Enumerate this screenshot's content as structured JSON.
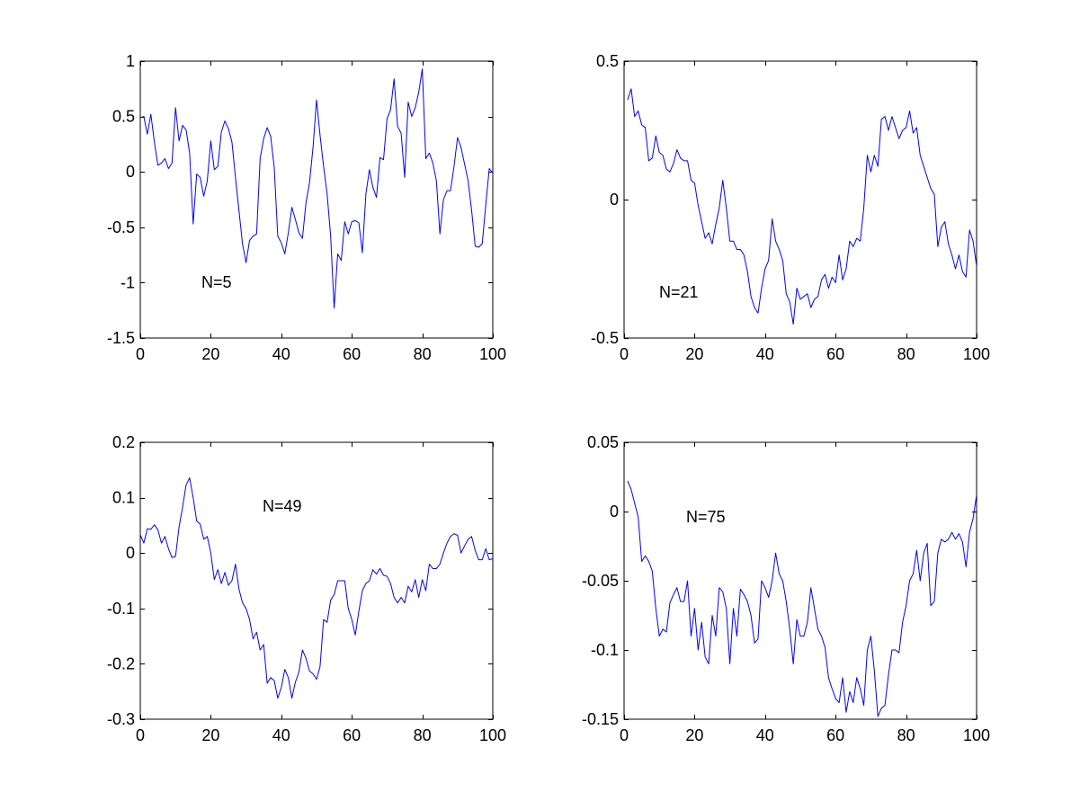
{
  "figure": {
    "background": "#ffffff",
    "line_color": "#0000ff"
  },
  "chart_data": [
    {
      "type": "line",
      "title": "",
      "xlabel": "",
      "ylabel": "",
      "annotation": "N=5",
      "xlim": [
        0,
        100
      ],
      "ylim": [
        -1.5,
        1
      ],
      "xticks": [
        0,
        20,
        40,
        60,
        80,
        100
      ],
      "xtick_labels": [
        "0",
        "20",
        "40",
        "60",
        "80",
        "100"
      ],
      "yticks": [
        -1.5,
        -1,
        -0.5,
        0,
        0.5,
        1
      ],
      "ytick_labels": [
        "-1.5",
        "-1",
        "-0.5",
        "0",
        "0.5",
        "1"
      ],
      "grid": false,
      "series": [
        {
          "color": "#0000ff",
          "x": [
            0,
            1,
            2,
            3,
            4,
            5,
            6,
            7,
            8,
            9,
            10,
            11,
            12,
            13,
            14,
            15,
            16,
            17,
            18,
            19,
            20,
            21,
            22,
            23,
            24,
            25,
            26,
            27,
            28,
            29,
            30,
            31,
            32,
            33,
            34,
            35,
            36,
            37,
            38,
            39,
            40,
            41,
            42,
            43,
            44,
            45,
            46,
            47,
            48,
            49,
            50,
            51,
            52,
            53,
            54,
            55,
            56,
            57,
            58,
            59,
            60,
            61,
            62,
            63,
            64,
            65,
            66,
            67,
            68,
            69,
            70,
            71,
            72,
            73,
            74,
            75,
            76,
            77,
            78,
            79,
            80,
            81,
            82,
            83,
            84,
            85,
            86,
            87,
            88,
            89,
            90,
            91,
            92,
            93,
            94,
            95,
            96,
            97,
            98,
            99,
            100
          ],
          "y": [
            0.49,
            0.5,
            0.34,
            0.52,
            0.27,
            0.06,
            0.08,
            0.12,
            0.03,
            0.08,
            0.58,
            0.28,
            0.42,
            0.38,
            0.17,
            -0.47,
            -0.02,
            -0.05,
            -0.22,
            -0.08,
            0.28,
            0.02,
            0.05,
            0.36,
            0.46,
            0.39,
            0.27,
            -0.05,
            -0.35,
            -0.65,
            -0.82,
            -0.62,
            -0.58,
            -0.56,
            0.12,
            0.3,
            0.4,
            0.32,
            0.04,
            -0.58,
            -0.64,
            -0.74,
            -0.55,
            -0.32,
            -0.43,
            -0.55,
            -0.6,
            -0.28,
            -0.1,
            0.22,
            0.65,
            0.33,
            0.05,
            -0.2,
            -0.58,
            -1.23,
            -0.74,
            -0.8,
            -0.45,
            -0.56,
            -0.45,
            -0.44,
            -0.46,
            -0.73,
            -0.2,
            0.02,
            -0.14,
            -0.23,
            0.13,
            0.11,
            0.48,
            0.56,
            0.84,
            0.41,
            0.35,
            -0.05,
            0.63,
            0.5,
            0.58,
            0.72,
            0.93,
            0.12,
            0.17,
            0.08,
            -0.08,
            -0.56,
            -0.25,
            -0.17,
            -0.17,
            0.05,
            0.31,
            0.22,
            0.07,
            -0.08,
            -0.35,
            -0.67,
            -0.68,
            -0.65,
            -0.3,
            0.03,
            -0.01
          ]
        }
      ]
    },
    {
      "type": "line",
      "title": "",
      "xlabel": "",
      "ylabel": "",
      "annotation": "N=21",
      "xlim": [
        0,
        100
      ],
      "ylim": [
        -0.5,
        0.5
      ],
      "xticks": [
        0,
        20,
        40,
        60,
        80,
        100
      ],
      "xtick_labels": [
        "0",
        "20",
        "40",
        "60",
        "80",
        "100"
      ],
      "yticks": [
        -0.5,
        0,
        0.5
      ],
      "ytick_labels": [
        "-0.5",
        "0",
        "0.5"
      ],
      "grid": false,
      "series": [
        {
          "color": "#0000ff",
          "x": [
            1,
            2,
            3,
            4,
            5,
            6,
            7,
            8,
            9,
            10,
            11,
            12,
            13,
            14,
            15,
            16,
            17,
            18,
            19,
            20,
            21,
            22,
            23,
            24,
            25,
            26,
            27,
            28,
            29,
            30,
            31,
            32,
            33,
            34,
            35,
            36,
            37,
            38,
            39,
            40,
            41,
            42,
            43,
            44,
            45,
            46,
            47,
            48,
            49,
            50,
            51,
            52,
            53,
            54,
            55,
            56,
            57,
            58,
            59,
            60,
            61,
            62,
            63,
            64,
            65,
            66,
            67,
            68,
            69,
            70,
            71,
            72,
            73,
            74,
            75,
            76,
            77,
            78,
            79,
            80,
            81,
            82,
            83,
            84,
            85,
            86,
            87,
            88,
            89,
            90,
            91,
            92,
            93,
            94,
            95,
            96,
            97,
            98,
            99,
            100
          ],
          "y": [
            0.36,
            0.4,
            0.3,
            0.32,
            0.27,
            0.26,
            0.14,
            0.15,
            0.23,
            0.17,
            0.16,
            0.11,
            0.1,
            0.13,
            0.18,
            0.15,
            0.14,
            0.14,
            0.07,
            0.06,
            -0.02,
            -0.08,
            -0.14,
            -0.12,
            -0.16,
            -0.09,
            -0.03,
            0.07,
            -0.03,
            -0.15,
            -0.15,
            -0.18,
            -0.18,
            -0.2,
            -0.26,
            -0.35,
            -0.39,
            -0.41,
            -0.32,
            -0.25,
            -0.22,
            -0.07,
            -0.15,
            -0.18,
            -0.22,
            -0.34,
            -0.37,
            -0.45,
            -0.32,
            -0.36,
            -0.35,
            -0.34,
            -0.39,
            -0.36,
            -0.35,
            -0.29,
            -0.27,
            -0.32,
            -0.28,
            -0.3,
            -0.2,
            -0.29,
            -0.25,
            -0.15,
            -0.17,
            -0.14,
            -0.15,
            -0.03,
            0.16,
            0.1,
            0.16,
            0.12,
            0.29,
            0.3,
            0.25,
            0.3,
            0.26,
            0.22,
            0.25,
            0.26,
            0.32,
            0.24,
            0.26,
            0.16,
            0.12,
            0.08,
            0.04,
            0.02,
            -0.17,
            -0.1,
            -0.08,
            -0.16,
            -0.2,
            -0.25,
            -0.2,
            -0.26,
            -0.28,
            -0.11,
            -0.15,
            -0.24
          ]
        }
      ]
    },
    {
      "type": "line",
      "title": "",
      "xlabel": "",
      "ylabel": "",
      "annotation": "N=49",
      "xlim": [
        0,
        100
      ],
      "ylim": [
        -0.3,
        0.2
      ],
      "xticks": [
        0,
        20,
        40,
        60,
        80,
        100
      ],
      "xtick_labels": [
        "0",
        "20",
        "40",
        "60",
        "80",
        "100"
      ],
      "yticks": [
        -0.3,
        -0.2,
        -0.1,
        0,
        0.1,
        0.2
      ],
      "ytick_labels": [
        "-0.3",
        "-0.2",
        "-0.1",
        "0",
        "0.1",
        "0.2"
      ],
      "grid": false,
      "series": [
        {
          "color": "#0000ff",
          "x": [
            0,
            1,
            2,
            3,
            4,
            5,
            6,
            7,
            8,
            9,
            10,
            11,
            12,
            13,
            14,
            15,
            16,
            17,
            18,
            19,
            20,
            21,
            22,
            23,
            24,
            25,
            26,
            27,
            28,
            29,
            30,
            31,
            32,
            33,
            34,
            35,
            36,
            37,
            38,
            39,
            40,
            41,
            42,
            43,
            44,
            45,
            46,
            47,
            48,
            49,
            50,
            51,
            52,
            53,
            54,
            55,
            56,
            57,
            58,
            59,
            60,
            61,
            62,
            63,
            64,
            65,
            66,
            67,
            68,
            69,
            70,
            71,
            72,
            73,
            74,
            75,
            76,
            77,
            78,
            79,
            80,
            81,
            82,
            83,
            84,
            85,
            86,
            87,
            88,
            89,
            90,
            91,
            92,
            93,
            94,
            95,
            96,
            97,
            98,
            99,
            100
          ],
          "y": [
            0.033,
            0.018,
            0.044,
            0.043,
            0.051,
            0.042,
            0.018,
            0.03,
            0.008,
            -0.008,
            -0.006,
            0.047,
            0.083,
            0.123,
            0.136,
            0.1,
            0.058,
            0.052,
            0.025,
            0.03,
            0.0,
            -0.048,
            -0.03,
            -0.055,
            -0.035,
            -0.058,
            -0.05,
            -0.02,
            -0.065,
            -0.09,
            -0.1,
            -0.12,
            -0.155,
            -0.143,
            -0.175,
            -0.165,
            -0.235,
            -0.225,
            -0.23,
            -0.262,
            -0.243,
            -0.21,
            -0.225,
            -0.262,
            -0.233,
            -0.215,
            -0.175,
            -0.19,
            -0.213,
            -0.218,
            -0.228,
            -0.205,
            -0.12,
            -0.125,
            -0.085,
            -0.075,
            -0.05,
            -0.05,
            -0.05,
            -0.1,
            -0.12,
            -0.148,
            -0.105,
            -0.068,
            -0.055,
            -0.05,
            -0.03,
            -0.038,
            -0.028,
            -0.04,
            -0.042,
            -0.055,
            -0.08,
            -0.09,
            -0.08,
            -0.09,
            -0.06,
            -0.07,
            -0.048,
            -0.08,
            -0.048,
            -0.068,
            -0.02,
            -0.028,
            -0.028,
            -0.02,
            0.0,
            0.018,
            0.03,
            0.035,
            0.032,
            0.0,
            0.013,
            0.025,
            0.03,
            0.005,
            -0.012,
            -0.012,
            0.008,
            -0.012,
            -0.01
          ]
        }
      ]
    },
    {
      "type": "line",
      "title": "",
      "xlabel": "",
      "ylabel": "",
      "annotation": "N=75",
      "xlim": [
        0,
        100
      ],
      "ylim": [
        -0.15,
        0.05
      ],
      "xticks": [
        0,
        20,
        40,
        60,
        80,
        100
      ],
      "xtick_labels": [
        "0",
        "20",
        "40",
        "60",
        "80",
        "100"
      ],
      "yticks": [
        -0.15,
        -0.1,
        -0.05,
        0,
        0.05
      ],
      "ytick_labels": [
        "-0.15",
        "-0.1",
        "-0.05",
        "0",
        "0.05"
      ],
      "grid": false,
      "series": [
        {
          "color": "#0000ff",
          "x": [
            1,
            2,
            3,
            4,
            5,
            6,
            7,
            8,
            9,
            10,
            11,
            12,
            13,
            14,
            15,
            16,
            17,
            18,
            19,
            20,
            21,
            22,
            23,
            24,
            25,
            26,
            27,
            28,
            29,
            30,
            31,
            32,
            33,
            34,
            35,
            36,
            37,
            38,
            39,
            40,
            41,
            42,
            43,
            44,
            45,
            46,
            47,
            48,
            49,
            50,
            51,
            52,
            53,
            54,
            55,
            56,
            57,
            58,
            59,
            60,
            61,
            62,
            63,
            64,
            65,
            66,
            67,
            68,
            69,
            70,
            71,
            72,
            73,
            74,
            75,
            76,
            77,
            78,
            79,
            80,
            81,
            82,
            83,
            84,
            85,
            86,
            87,
            88,
            89,
            90,
            91,
            92,
            93,
            94,
            95,
            96,
            97,
            98,
            99,
            100
          ],
          "y": [
            0.022,
            0.016,
            0.006,
            -0.004,
            -0.036,
            -0.032,
            -0.036,
            -0.043,
            -0.07,
            -0.09,
            -0.085,
            -0.087,
            -0.066,
            -0.06,
            -0.055,
            -0.065,
            -0.065,
            -0.05,
            -0.09,
            -0.07,
            -0.1,
            -0.08,
            -0.105,
            -0.11,
            -0.075,
            -0.09,
            -0.055,
            -0.058,
            -0.07,
            -0.11,
            -0.07,
            -0.09,
            -0.056,
            -0.06,
            -0.065,
            -0.075,
            -0.095,
            -0.092,
            -0.05,
            -0.055,
            -0.062,
            -0.05,
            -0.03,
            -0.045,
            -0.05,
            -0.065,
            -0.085,
            -0.11,
            -0.078,
            -0.09,
            -0.09,
            -0.08,
            -0.055,
            -0.07,
            -0.085,
            -0.09,
            -0.098,
            -0.12,
            -0.128,
            -0.135,
            -0.138,
            -0.12,
            -0.145,
            -0.13,
            -0.138,
            -0.12,
            -0.128,
            -0.14,
            -0.1,
            -0.09,
            -0.115,
            -0.148,
            -0.142,
            -0.14,
            -0.118,
            -0.1,
            -0.1,
            -0.102,
            -0.08,
            -0.068,
            -0.05,
            -0.045,
            -0.028,
            -0.05,
            -0.03,
            -0.023,
            -0.068,
            -0.065,
            -0.03,
            -0.02,
            -0.022,
            -0.02,
            -0.015,
            -0.02,
            -0.016,
            -0.022,
            -0.04,
            -0.015,
            -0.005,
            0.012
          ]
        }
      ]
    }
  ]
}
